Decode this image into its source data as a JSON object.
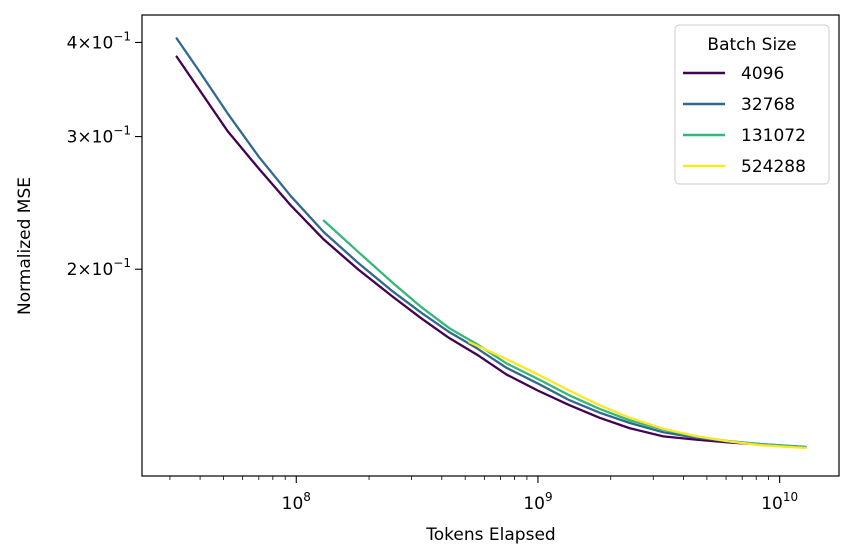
{
  "chart_data": {
    "type": "line",
    "title": "",
    "xlabel": "Tokens Elapsed",
    "ylabel": "Normalized MSE",
    "xscale": "log",
    "yscale": "log",
    "xlim": [
      23000000,
      17600000000
    ],
    "ylim": [
      0.1063,
      0.435
    ],
    "x_ticks": [
      {
        "value": 100000000,
        "base": "10",
        "exp": "8"
      },
      {
        "value": 1000000000,
        "base": "10",
        "exp": "9"
      },
      {
        "value": 10000000000,
        "base": "10",
        "exp": "10"
      }
    ],
    "y_ticks": [
      {
        "value": 0.4,
        "mant": "4",
        "exp": "−1"
      },
      {
        "value": 0.3,
        "mant": "3",
        "exp": "−1"
      },
      {
        "value": 0.2,
        "mant": "2",
        "exp": "−1"
      }
    ],
    "legend": {
      "title": "Batch Size",
      "position": "top-right"
    },
    "grid": false,
    "series": [
      {
        "name": "4096",
        "color": "#440154",
        "x": [
          32000000,
          40000000,
          52000000,
          70000000,
          95000000,
          130000000,
          180000000,
          250000000,
          330000000,
          430000000,
          560000000,
          740000000,
          1000000000,
          1350000000,
          1800000000,
          2400000000,
          3300000000,
          4500000000,
          6100000000,
          8300000000,
          12800000000
        ],
        "y": [
          0.383,
          0.345,
          0.305,
          0.272,
          0.243,
          0.219,
          0.2,
          0.184,
          0.172,
          0.162,
          0.154,
          0.145,
          0.138,
          0.132,
          0.127,
          0.123,
          0.12,
          0.1188,
          0.1178,
          0.117,
          0.116
        ]
      },
      {
        "name": "32768",
        "color": "#31688e",
        "x": [
          32000000,
          40000000,
          52000000,
          70000000,
          95000000,
          130000000,
          180000000,
          250000000,
          330000000,
          430000000,
          560000000,
          740000000,
          1000000000,
          1350000000,
          1800000000,
          2400000000,
          3300000000,
          4500000000,
          6100000000,
          8300000000,
          12800000000
        ],
        "y": [
          0.405,
          0.365,
          0.322,
          0.282,
          0.25,
          0.224,
          0.204,
          0.187,
          0.175,
          0.165,
          0.157,
          0.148,
          0.141,
          0.134,
          0.129,
          0.125,
          0.1215,
          0.1195,
          0.1182,
          0.1172,
          0.1162
        ]
      },
      {
        "name": "131072",
        "color": "#35b779",
        "x": [
          130000000,
          180000000,
          250000000,
          330000000,
          430000000,
          560000000,
          740000000,
          1000000000,
          1350000000,
          1800000000,
          2400000000,
          3300000000,
          4500000000,
          6100000000,
          8300000000,
          12800000000
        ],
        "y": [
          0.232,
          0.211,
          0.192,
          0.178,
          0.167,
          0.159,
          0.15,
          0.143,
          0.136,
          0.1305,
          0.126,
          0.1225,
          0.12,
          0.1183,
          0.1172,
          0.1161
        ]
      },
      {
        "name": "524288",
        "color": "#fde725",
        "x": [
          520000000,
          740000000,
          1000000000,
          1350000000,
          1800000000,
          2400000000,
          3300000000,
          4500000000,
          6100000000,
          8300000000,
          12800000000
        ],
        "y": [
          0.16,
          0.152,
          0.145,
          0.138,
          0.132,
          0.127,
          0.1228,
          0.1201,
          0.1182,
          0.1168,
          0.1158
        ]
      }
    ]
  }
}
